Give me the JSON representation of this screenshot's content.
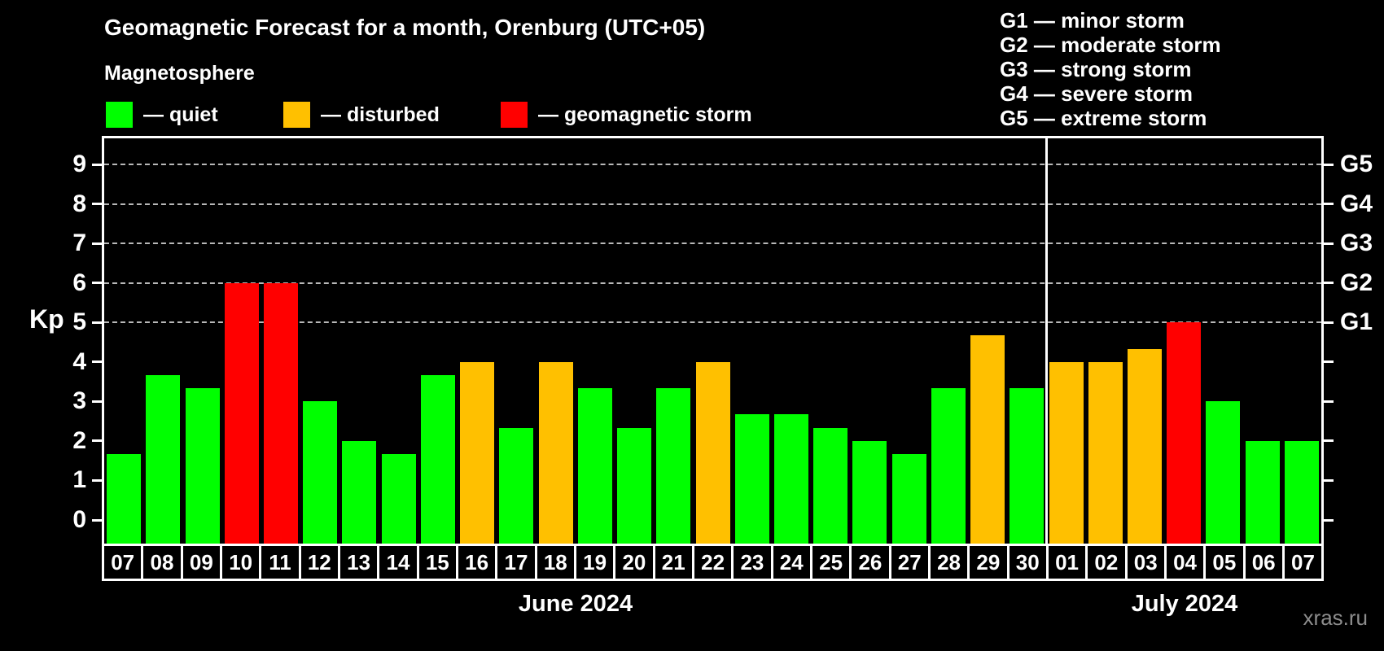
{
  "title": "Geomagnetic Forecast for a month, Orenburg (UTC+05)",
  "subtitle": "Magnetosphere",
  "legend": {
    "items": [
      {
        "label": "— quiet",
        "state": "quiet",
        "color": "#00ff00"
      },
      {
        "label": "— disturbed",
        "state": "disturbed",
        "color": "#ffc000"
      },
      {
        "label": "— geomagnetic storm",
        "state": "storm",
        "color": "#ff0000"
      }
    ]
  },
  "g_legend": {
    "items": [
      {
        "code": "G1",
        "text": "G1 — minor storm"
      },
      {
        "code": "G2",
        "text": "G2 — moderate storm"
      },
      {
        "code": "G3",
        "text": "G3 — strong storm"
      },
      {
        "code": "G4",
        "text": "G4 — severe storm"
      },
      {
        "code": "G5",
        "text": "G5 — extreme storm"
      }
    ]
  },
  "watermark": "xras.ru",
  "chart_data": {
    "type": "bar",
    "title": "Geomagnetic Forecast for a month, Orenburg (UTC+05)",
    "ylabel": "Kp",
    "ylim": [
      0,
      9.6
    ],
    "y_ticks": [
      0,
      1,
      2,
      3,
      4,
      5,
      6,
      7,
      8,
      9
    ],
    "gridline_kps": [
      5,
      6,
      7,
      8,
      9
    ],
    "grid": "dashed horizontal at storm levels only",
    "legend_position": "top",
    "right_axis": [
      {
        "label": "G1",
        "kp": 5
      },
      {
        "label": "G2",
        "kp": 6
      },
      {
        "label": "G3",
        "kp": 7
      },
      {
        "label": "G4",
        "kp": 8
      },
      {
        "label": "G5",
        "kp": 9
      }
    ],
    "state_colors": {
      "quiet": "#00ff00",
      "disturbed": "#ffc000",
      "storm": "#ff0000"
    },
    "months": [
      {
        "label": "June 2024",
        "days": 24
      },
      {
        "label": "July 2024",
        "days": 7
      }
    ],
    "bars": [
      {
        "day": "07",
        "month": "June 2024",
        "kp": 1.67,
        "state": "quiet"
      },
      {
        "day": "08",
        "month": "June 2024",
        "kp": 3.67,
        "state": "quiet"
      },
      {
        "day": "09",
        "month": "June 2024",
        "kp": 3.33,
        "state": "quiet"
      },
      {
        "day": "10",
        "month": "June 2024",
        "kp": 6.0,
        "state": "storm"
      },
      {
        "day": "11",
        "month": "June 2024",
        "kp": 6.0,
        "state": "storm"
      },
      {
        "day": "12",
        "month": "June 2024",
        "kp": 3.0,
        "state": "quiet"
      },
      {
        "day": "13",
        "month": "June 2024",
        "kp": 2.0,
        "state": "quiet"
      },
      {
        "day": "14",
        "month": "June 2024",
        "kp": 1.67,
        "state": "quiet"
      },
      {
        "day": "15",
        "month": "June 2024",
        "kp": 3.67,
        "state": "quiet"
      },
      {
        "day": "16",
        "month": "June 2024",
        "kp": 4.0,
        "state": "disturbed"
      },
      {
        "day": "17",
        "month": "June 2024",
        "kp": 2.33,
        "state": "quiet"
      },
      {
        "day": "18",
        "month": "June 2024",
        "kp": 4.0,
        "state": "disturbed"
      },
      {
        "day": "19",
        "month": "June 2024",
        "kp": 3.33,
        "state": "quiet"
      },
      {
        "day": "20",
        "month": "June 2024",
        "kp": 2.33,
        "state": "quiet"
      },
      {
        "day": "21",
        "month": "June 2024",
        "kp": 3.33,
        "state": "quiet"
      },
      {
        "day": "22",
        "month": "June 2024",
        "kp": 4.0,
        "state": "disturbed"
      },
      {
        "day": "23",
        "month": "June 2024",
        "kp": 2.67,
        "state": "quiet"
      },
      {
        "day": "24",
        "month": "June 2024",
        "kp": 2.67,
        "state": "quiet"
      },
      {
        "day": "25",
        "month": "June 2024",
        "kp": 2.33,
        "state": "quiet"
      },
      {
        "day": "26",
        "month": "June 2024",
        "kp": 2.0,
        "state": "quiet"
      },
      {
        "day": "27",
        "month": "June 2024",
        "kp": 1.67,
        "state": "quiet"
      },
      {
        "day": "28",
        "month": "June 2024",
        "kp": 3.33,
        "state": "quiet"
      },
      {
        "day": "29",
        "month": "June 2024",
        "kp": 4.67,
        "state": "disturbed"
      },
      {
        "day": "30",
        "month": "June 2024",
        "kp": 3.33,
        "state": "quiet"
      },
      {
        "day": "01",
        "month": "July 2024",
        "kp": 4.0,
        "state": "disturbed"
      },
      {
        "day": "02",
        "month": "July 2024",
        "kp": 4.0,
        "state": "disturbed"
      },
      {
        "day": "03",
        "month": "July 2024",
        "kp": 4.33,
        "state": "disturbed"
      },
      {
        "day": "04",
        "month": "July 2024",
        "kp": 5.0,
        "state": "storm"
      },
      {
        "day": "05",
        "month": "July 2024",
        "kp": 3.0,
        "state": "quiet"
      },
      {
        "day": "06",
        "month": "July 2024",
        "kp": 2.0,
        "state": "quiet"
      },
      {
        "day": "07",
        "month": "July 2024",
        "kp": 2.0,
        "state": "quiet"
      }
    ]
  }
}
